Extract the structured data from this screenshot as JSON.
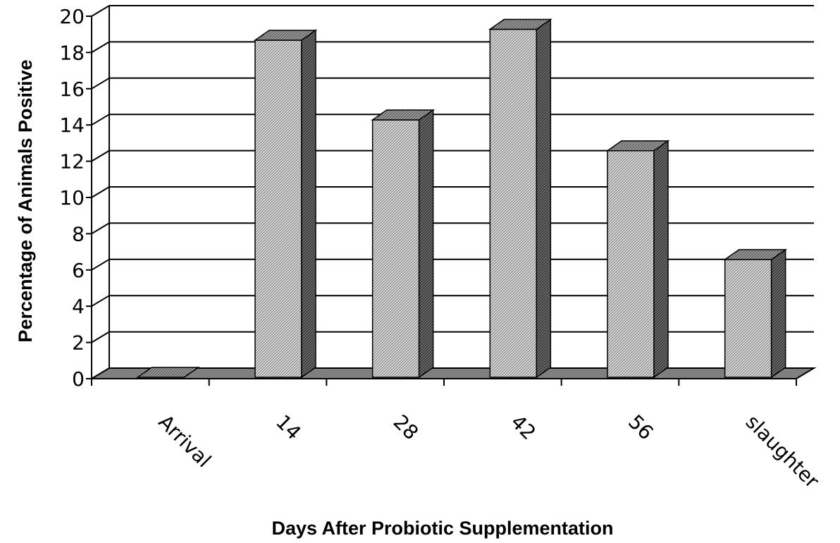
{
  "chart_data": {
    "type": "bar",
    "style": "3d-column",
    "categories": [
      "Arrival",
      "14",
      "28",
      "42",
      "56",
      "slaughter"
    ],
    "values": [
      0,
      18.6,
      14.2,
      19.2,
      12.5,
      6.5
    ],
    "xlabel": "Days After Probiotic Supplementation",
    "ylabel": "Percentage of Animals Positive",
    "ylim": [
      0,
      20
    ],
    "yticks": [
      "0",
      "2",
      "4",
      "6",
      "8",
      "10",
      "12",
      "14",
      "16",
      "18",
      "20"
    ],
    "grid": true,
    "legend": "none",
    "colors": {
      "bar_face": "#d9d9d9",
      "bar_hatch": "#7a7a7a",
      "bar_side": "#4d4d4d",
      "bar_top": "#8c8c8c",
      "floor": "#7f7f7f",
      "gridline": "#000000"
    }
  }
}
